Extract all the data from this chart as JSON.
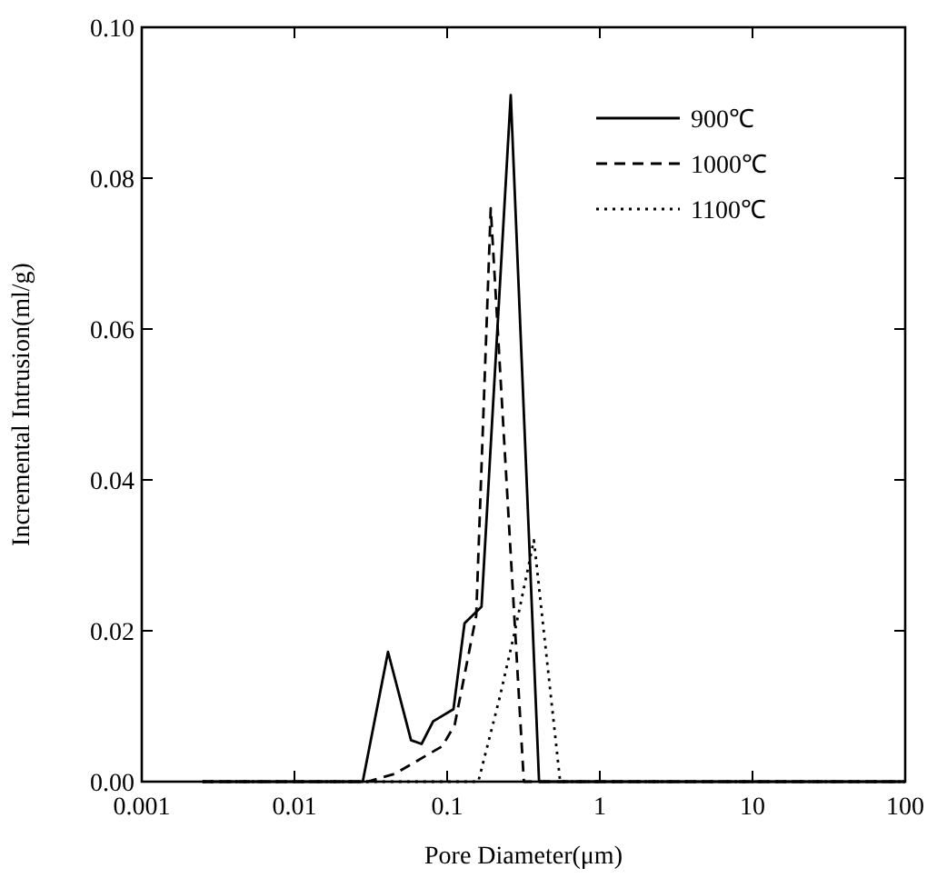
{
  "chart_data": {
    "type": "line",
    "xlabel": "Pore Diameter(μm)",
    "ylabel": "Incremental Intrusion(ml/g)",
    "log": "x",
    "xlim": [
      0.001,
      100
    ],
    "xticks": [
      0.001,
      0.01,
      0.1,
      1,
      10,
      100
    ],
    "ylim": [
      0,
      0.1
    ],
    "yticks": [
      {
        "value": 0,
        "label": "0.00"
      },
      {
        "value": 0.02,
        "label": "0.02"
      },
      {
        "value": 0.04,
        "label": "0.04"
      },
      {
        "value": 0.06,
        "label": "0.06"
      },
      {
        "value": 0.08,
        "label": "0.08"
      },
      {
        "value": 0.1,
        "label": "0.10"
      }
    ],
    "grid": false,
    "legend": "top right",
    "marker": "none",
    "series": [
      {
        "name": "900℃",
        "color": "#000000",
        "line_style": "solid",
        "x": [
          0.0025,
          0.028,
          0.041,
          0.058,
          0.068,
          0.081,
          0.11,
          0.13,
          0.168,
          0.261,
          0.4,
          100
        ],
        "values": [
          0,
          0,
          0.0172,
          0.0055,
          0.005,
          0.008,
          0.0096,
          0.021,
          0.0232,
          0.091,
          0,
          0
        ]
      },
      {
        "name": "1000℃",
        "color": "#000000",
        "line_style": "dashed",
        "x": [
          0.0025,
          0.03,
          0.045,
          0.093,
          0.112,
          0.155,
          0.193,
          0.318,
          100
        ],
        "values": [
          0,
          0,
          0.001,
          0.0047,
          0.0075,
          0.022,
          0.076,
          0,
          0
        ]
      },
      {
        "name": "1100℃",
        "color": "#000000",
        "line_style": "dotted",
        "x": [
          0.0025,
          0.16,
          0.22,
          0.278,
          0.37,
          0.55,
          100
        ],
        "values": [
          0,
          0,
          0.011,
          0.02,
          0.032,
          0,
          0
        ]
      }
    ]
  }
}
